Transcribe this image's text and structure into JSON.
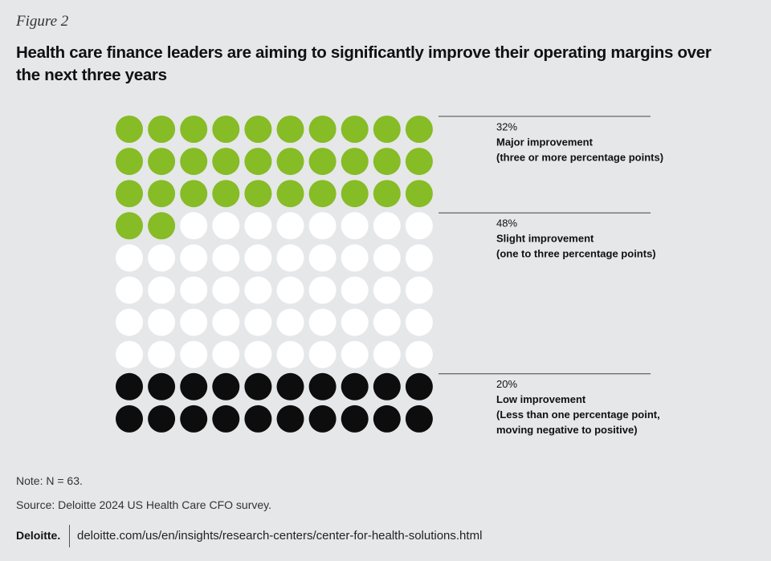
{
  "figure_label": "Figure 2",
  "chart_data": {
    "type": "waffle",
    "title": "Health care finance leaders are aiming to significantly improve their operating margins over the next three years",
    "categories": [
      "Major improvement",
      "Slight improvement",
      "Low improvement"
    ],
    "descriptions": [
      [
        "(three or more percentage points)"
      ],
      [
        "(one to three percentage points)"
      ],
      [
        "(Less than one percentage point,",
        "moving negative to positive)"
      ]
    ],
    "values": [
      32,
      48,
      20
    ],
    "value_labels": [
      "32%",
      "48%",
      "20%"
    ],
    "colors": [
      "#86bc25",
      "#ffffff",
      "#0d0d0d"
    ]
  },
  "note": "Note: N = 63.",
  "source": "Source: Deloitte 2024 US Health Care CFO survey.",
  "footer": {
    "brand": "Deloitte.",
    "url": "deloitte.com/us/en/insights/research-centers/center-for-health-solutions.html"
  }
}
